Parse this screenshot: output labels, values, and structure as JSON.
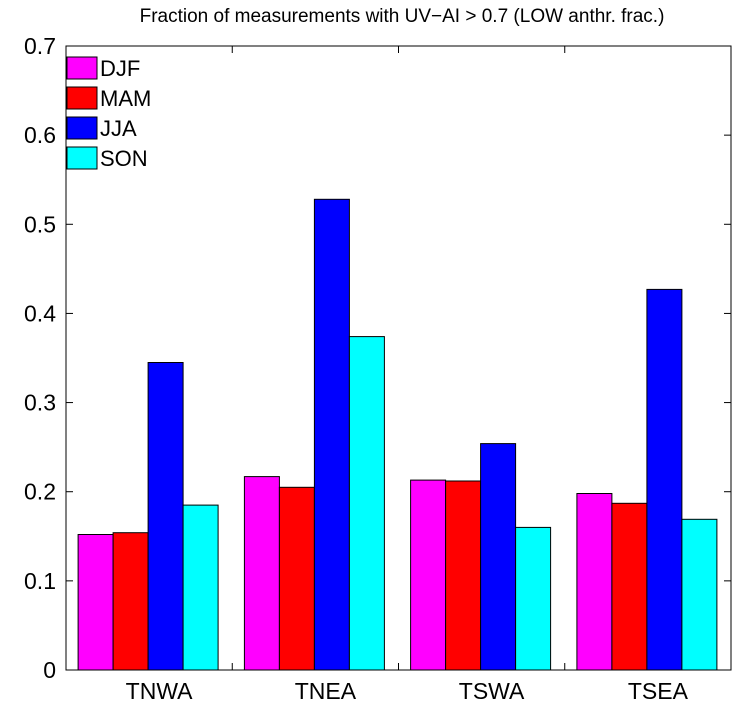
{
  "chart_data": {
    "type": "bar",
    "title": "Fraction of measurements with UV−AI > 0.7 (LOW anthr. frac.)",
    "xlabel": "",
    "ylabel": "",
    "categories": [
      "TNWA",
      "TNEA",
      "TSWA",
      "TSEA"
    ],
    "ylim": [
      0,
      0.7
    ],
    "yticks": [
      "0",
      "0.1",
      "0.2",
      "0.3",
      "0.4",
      "0.5",
      "0.6",
      "0.7"
    ],
    "grid": false,
    "legend_position": "top-left",
    "series": [
      {
        "name": "DJF",
        "color": "#ff00ff",
        "values": [
          0.152,
          0.217,
          0.213,
          0.198
        ]
      },
      {
        "name": "MAM",
        "color": "#ff0000",
        "values": [
          0.154,
          0.205,
          0.212,
          0.187
        ]
      },
      {
        "name": "JJA",
        "color": "#0000ff",
        "values": [
          0.345,
          0.528,
          0.254,
          0.427
        ]
      },
      {
        "name": "SON",
        "color": "#00ffff",
        "values": [
          0.185,
          0.374,
          0.16,
          0.169
        ]
      }
    ]
  }
}
